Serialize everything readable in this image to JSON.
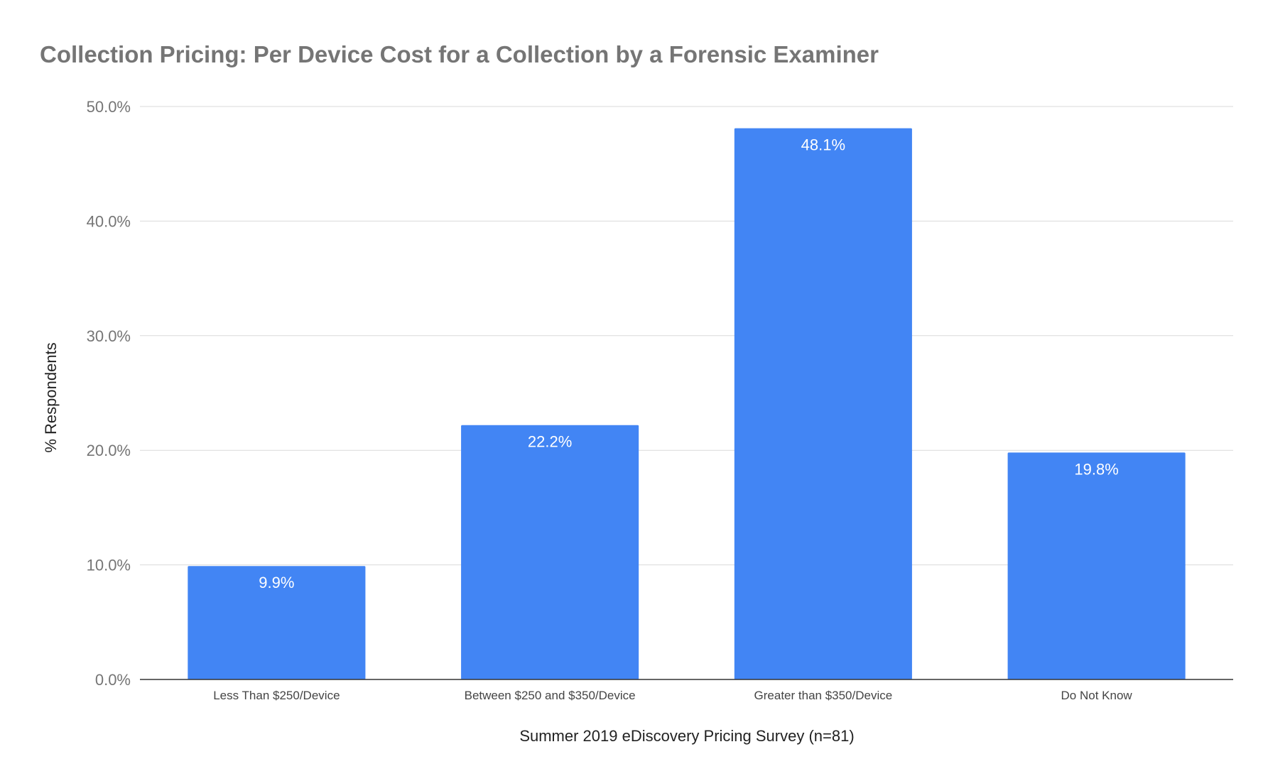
{
  "chart_data": {
    "type": "bar",
    "title": "Collection Pricing: Per Device Cost for a Collection by a Forensic Examiner",
    "xlabel": "Summer 2019 eDiscovery Pricing Survey (n=81)",
    "ylabel": "% Respondents",
    "categories": [
      "Less Than $250/Device",
      "Between $250 and $350/Device",
      "Greater than $350/Device",
      "Do Not Know"
    ],
    "values": [
      9.9,
      22.2,
      48.1,
      19.8
    ],
    "data_labels": [
      "9.9%",
      "22.2%",
      "48.1%",
      "19.8%"
    ],
    "ylim": [
      0,
      50
    ],
    "yticks": [
      0,
      10,
      20,
      30,
      40,
      50
    ],
    "ytick_labels": [
      "0.0%",
      "10.0%",
      "20.0%",
      "30.0%",
      "40.0%",
      "50.0%"
    ],
    "grid": true,
    "legend": "none",
    "bar_color": "#4285f4"
  }
}
